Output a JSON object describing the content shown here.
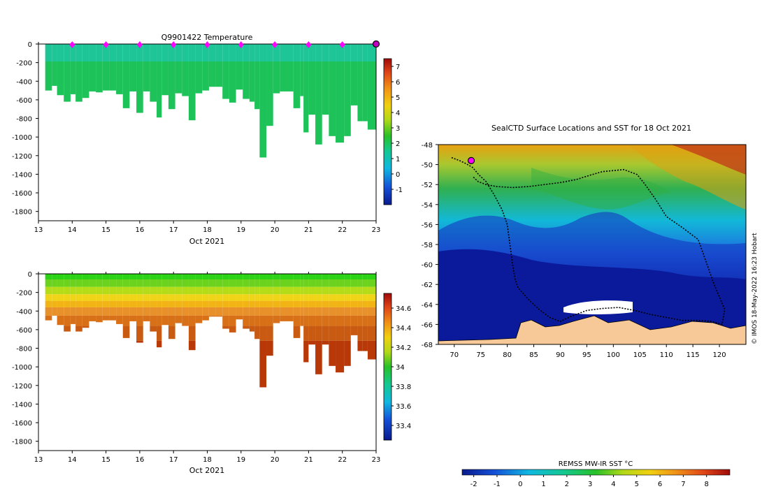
{
  "figure": {
    "credit": "© IMOS 18-May-2022 16:23 Hobart"
  },
  "chart_data": [
    {
      "id": "temperature",
      "type": "heatmap",
      "title": "Q9901422  Temperature",
      "xlabel": "Oct 2021",
      "ylabel": "",
      "xlim": [
        13,
        23
      ],
      "ylim": [
        -1900,
        0
      ],
      "xticks": [
        13,
        14,
        15,
        16,
        17,
        18,
        19,
        20,
        21,
        22,
        23
      ],
      "yticks": [
        0,
        -200,
        -400,
        -600,
        -800,
        -1000,
        -1200,
        -1400,
        -1600,
        -1800
      ],
      "colorbar": {
        "range": [
          -2,
          7.5
        ],
        "ticks": [
          -1,
          0,
          1,
          2,
          3,
          4,
          5,
          6,
          7
        ]
      },
      "surface_markers_x": [
        14,
        15,
        16,
        17,
        18,
        19,
        20,
        21,
        22
      ],
      "last_profile_x": 23,
      "profiles": [
        {
          "t": 13.3,
          "depth": 500
        },
        {
          "t": 13.5,
          "depth": 450
        },
        {
          "t": 13.65,
          "depth": 550
        },
        {
          "t": 13.85,
          "depth": 620
        },
        {
          "t": 14.05,
          "depth": 540
        },
        {
          "t": 14.2,
          "depth": 620
        },
        {
          "t": 14.4,
          "depth": 580
        },
        {
          "t": 14.6,
          "depth": 510
        },
        {
          "t": 14.8,
          "depth": 520
        },
        {
          "t": 15.0,
          "depth": 500
        },
        {
          "t": 15.2,
          "depth": 500
        },
        {
          "t": 15.4,
          "depth": 540
        },
        {
          "t": 15.6,
          "depth": 690
        },
        {
          "t": 15.8,
          "depth": 510
        },
        {
          "t": 16.0,
          "depth": 740
        },
        {
          "t": 16.2,
          "depth": 510
        },
        {
          "t": 16.4,
          "depth": 620
        },
        {
          "t": 16.6,
          "depth": 790
        },
        {
          "t": 16.75,
          "depth": 550
        },
        {
          "t": 16.95,
          "depth": 700
        },
        {
          "t": 17.15,
          "depth": 530
        },
        {
          "t": 17.35,
          "depth": 560
        },
        {
          "t": 17.55,
          "depth": 820
        },
        {
          "t": 17.75,
          "depth": 530
        },
        {
          "t": 17.95,
          "depth": 500
        },
        {
          "t": 18.15,
          "depth": 460
        },
        {
          "t": 18.35,
          "depth": 460
        },
        {
          "t": 18.55,
          "depth": 590
        },
        {
          "t": 18.75,
          "depth": 630
        },
        {
          "t": 18.95,
          "depth": 490
        },
        {
          "t": 19.15,
          "depth": 590
        },
        {
          "t": 19.35,
          "depth": 620
        },
        {
          "t": 19.5,
          "depth": 700
        },
        {
          "t": 19.65,
          "depth": 1220
        },
        {
          "t": 19.85,
          "depth": 880
        },
        {
          "t": 20.05,
          "depth": 530
        },
        {
          "t": 20.25,
          "depth": 510
        },
        {
          "t": 20.45,
          "depth": 510
        },
        {
          "t": 20.65,
          "depth": 690
        },
        {
          "t": 20.85,
          "depth": 560
        },
        {
          "t": 20.95,
          "depth": 950
        },
        {
          "t": 21.1,
          "depth": 760
        },
        {
          "t": 21.3,
          "depth": 1080
        },
        {
          "t": 21.5,
          "depth": 760
        },
        {
          "t": 21.7,
          "depth": 990
        },
        {
          "t": 21.9,
          "depth": 1060
        },
        {
          "t": 22.15,
          "depth": 990
        },
        {
          "t": 22.35,
          "depth": 660
        },
        {
          "t": 22.55,
          "depth": 830
        },
        {
          "t": 22.7,
          "depth": 830
        },
        {
          "t": 22.85,
          "depth": 920
        }
      ]
    },
    {
      "id": "salinity",
      "type": "heatmap",
      "title": "",
      "xlabel": "Oct 2021",
      "ylabel": "",
      "xlim": [
        13,
        23
      ],
      "ylim": [
        -1900,
        0
      ],
      "xticks": [
        13,
        14,
        15,
        16,
        17,
        18,
        19,
        20,
        21,
        22,
        23
      ],
      "yticks": [
        0,
        -200,
        -400,
        -600,
        -800,
        -1000,
        -1200,
        -1400,
        -1600,
        -1800
      ],
      "colorbar": {
        "range": [
          33.25,
          34.75
        ],
        "ticks": [
          33.4,
          33.6,
          33.8,
          34,
          34.2,
          34.4,
          34.6
        ]
      }
    },
    {
      "id": "sst-map",
      "type": "heatmap",
      "title": "SealCTD Surface Locations and SST for 18 Oct 2021",
      "xlabel": "",
      "ylabel": "",
      "xlim": [
        67,
        125
      ],
      "ylim": [
        -68,
        -48
      ],
      "xticks": [
        70,
        75,
        80,
        85,
        90,
        95,
        100,
        105,
        110,
        115,
        120
      ],
      "yticks": [
        -48,
        -50,
        -52,
        -54,
        -56,
        -58,
        -60,
        -62,
        -64,
        -66,
        -68
      ],
      "colorbar": {
        "label": "REMSS MW-IR SST °C",
        "range": [
          -2.5,
          9
        ],
        "ticks": [
          -2,
          -1,
          0,
          1,
          2,
          3,
          4,
          5,
          6,
          7,
          8
        ]
      },
      "current_location": {
        "lon": 73.2,
        "lat": -49.6
      },
      "track": [
        [
          69.5,
          -49.3
        ],
        [
          71,
          -49.6
        ],
        [
          72.2,
          -49.9
        ],
        [
          73.5,
          -50.3
        ],
        [
          74.6,
          -51
        ],
        [
          76,
          -51.7
        ],
        [
          77.5,
          -53
        ],
        [
          79,
          -54.5
        ],
        [
          80,
          -56
        ],
        [
          80.5,
          -58
        ],
        [
          81,
          -60
        ],
        [
          81.5,
          -61.5
        ],
        [
          82,
          -62.3
        ],
        [
          84,
          -63.5
        ],
        [
          86,
          -64.5
        ],
        [
          88,
          -65.3
        ],
        [
          90,
          -65.7
        ],
        [
          92,
          -65.2
        ],
        [
          95,
          -64.6
        ],
        [
          98,
          -64.4
        ],
        [
          101,
          -64.3
        ],
        [
          104,
          -64.6
        ],
        [
          107,
          -65
        ],
        [
          110,
          -65.3
        ],
        [
          113,
          -65.6
        ],
        [
          116,
          -65.6
        ],
        [
          118.5,
          -65.7
        ],
        [
          120.5,
          -66
        ],
        [
          121,
          -64.5
        ],
        [
          119,
          -62
        ],
        [
          117,
          -59
        ],
        [
          116,
          -57.5
        ],
        [
          113,
          -56.3
        ],
        [
          110,
          -55.2
        ],
        [
          108,
          -53.5
        ],
        [
          106,
          -52
        ],
        [
          104.5,
          -51
        ],
        [
          102,
          -50.5
        ],
        [
          100,
          -50.6
        ],
        [
          98,
          -50.7
        ],
        [
          96,
          -51
        ],
        [
          93,
          -51.5
        ],
        [
          90,
          -51.8
        ],
        [
          87,
          -52
        ],
        [
          84,
          -52.2
        ],
        [
          81,
          -52.3
        ],
        [
          78,
          -52.2
        ],
        [
          76,
          -52
        ],
        [
          74.5,
          -51.7
        ],
        [
          73.5,
          -51.2
        ]
      ]
    }
  ]
}
